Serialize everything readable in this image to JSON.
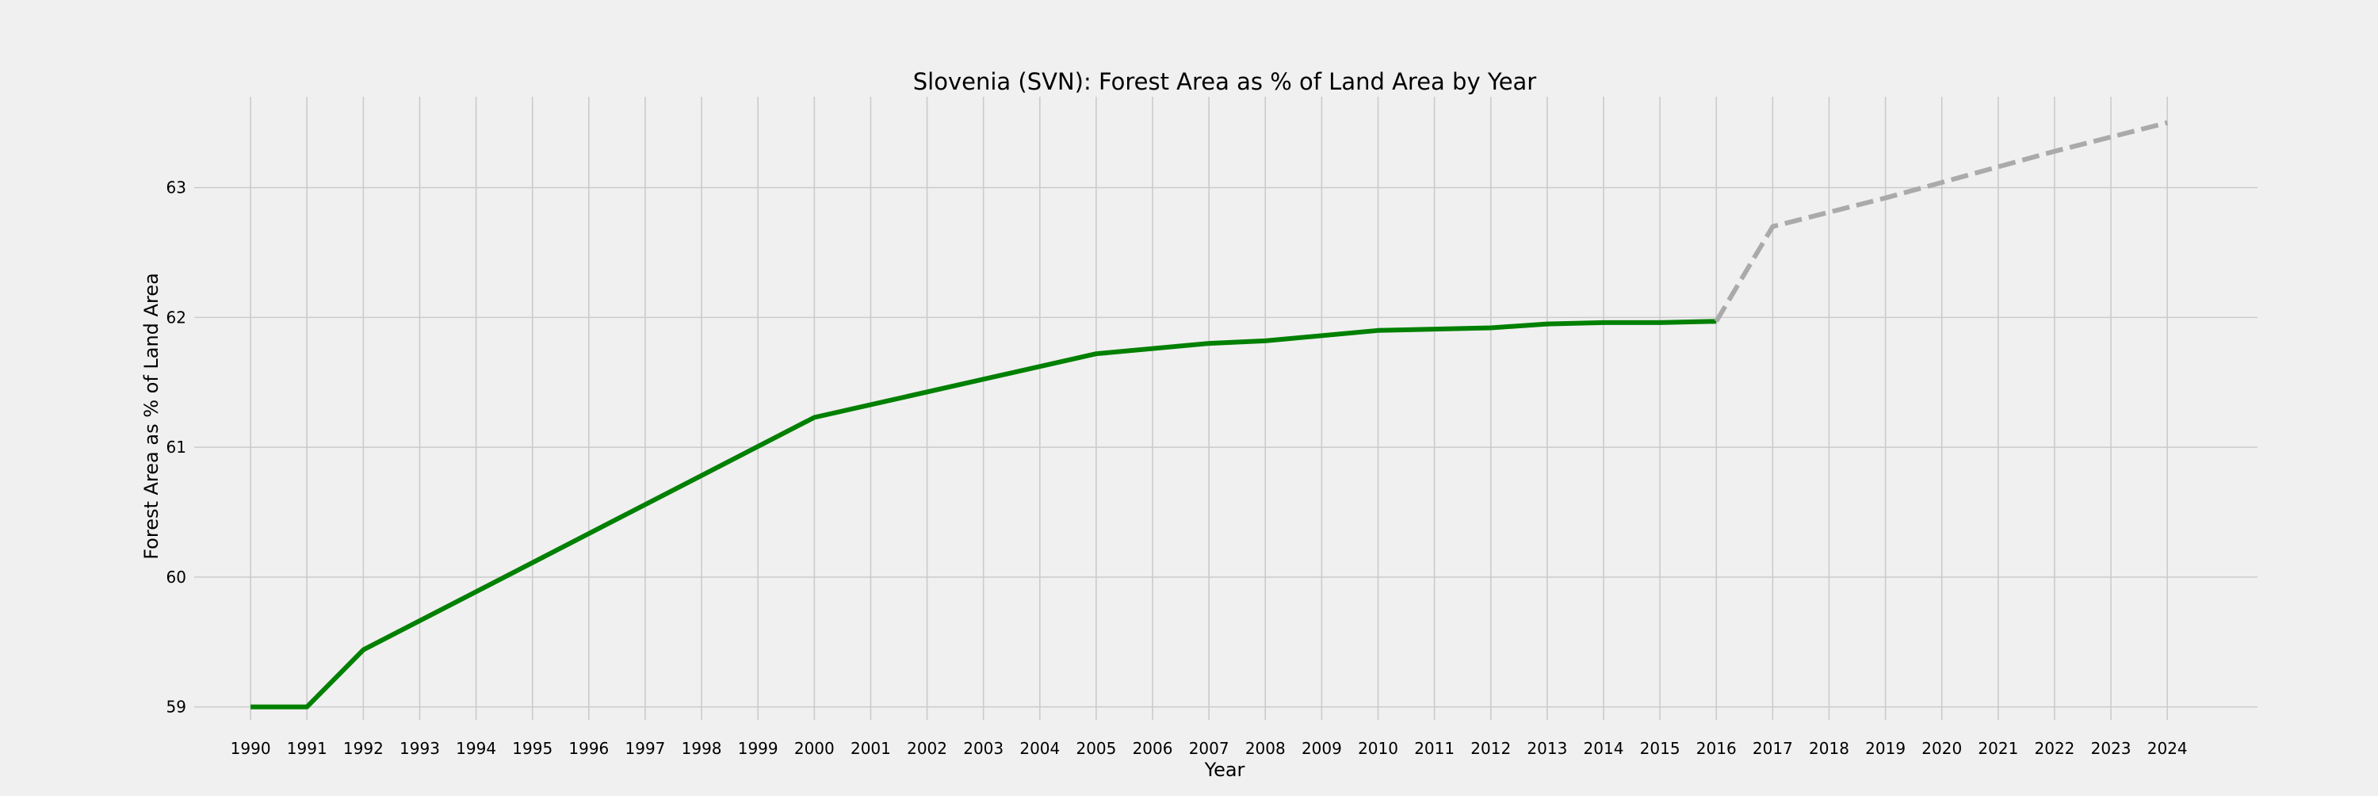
{
  "chart_data": {
    "type": "line",
    "title": "Slovenia (SVN): Forest Area as % of Land Area by Year",
    "xlabel": "Year",
    "ylabel": "Forest Area as % of Land Area",
    "xlim": [
      1989,
      2025.6
    ],
    "ylim": [
      58.9,
      63.7
    ],
    "x_ticks": [
      1990,
      1991,
      1992,
      1993,
      1994,
      1995,
      1996,
      1997,
      1998,
      1999,
      2000,
      2001,
      2002,
      2003,
      2004,
      2005,
      2006,
      2007,
      2008,
      2009,
      2010,
      2011,
      2012,
      2013,
      2014,
      2015,
      2016,
      2017,
      2018,
      2019,
      2020,
      2021,
      2022,
      2023,
      2024
    ],
    "y_ticks": [
      59,
      60,
      61,
      62,
      63
    ],
    "grid": true,
    "legend": "none",
    "series": [
      {
        "style": "solid",
        "color": "#008000",
        "x": [
          1990,
          1991,
          1992,
          2000,
          2005,
          2007,
          2008,
          2010,
          2012,
          2013,
          2014,
          2015,
          2016
        ],
        "y": [
          59.0,
          59.0,
          59.44,
          61.23,
          61.72,
          61.8,
          61.82,
          61.9,
          61.92,
          61.95,
          61.96,
          61.96,
          61.97
        ]
      },
      {
        "style": "dashed",
        "color": "#aaaaaa",
        "x": [
          2016,
          2017,
          2018,
          2019,
          2020,
          2021,
          2022,
          2023,
          2024
        ],
        "y": [
          61.97,
          62.7,
          62.81,
          62.92,
          63.04,
          63.16,
          63.28,
          63.39,
          63.5
        ]
      }
    ]
  }
}
